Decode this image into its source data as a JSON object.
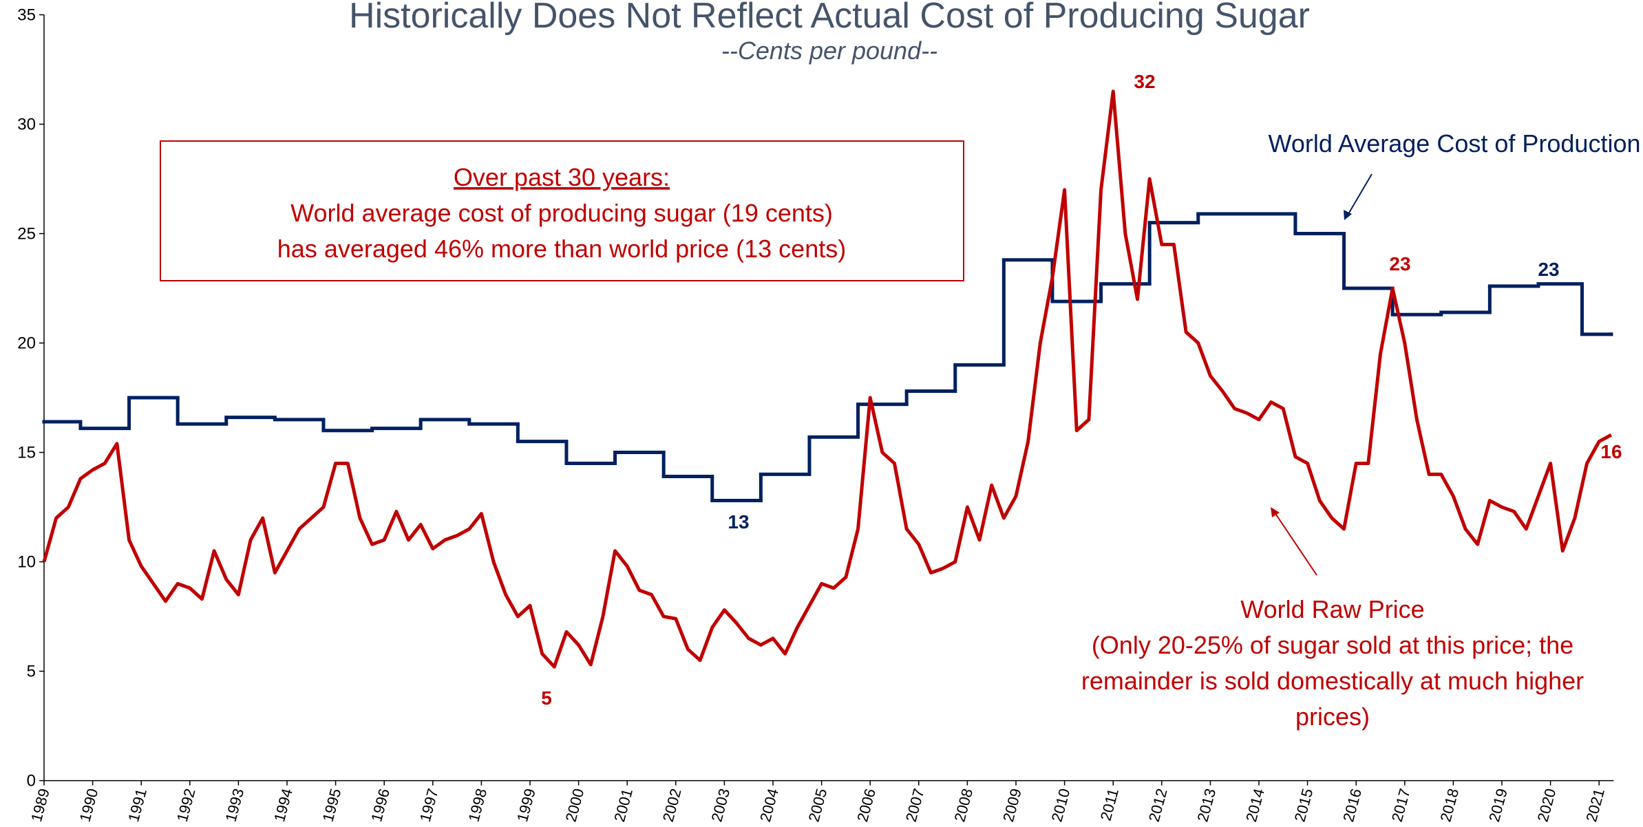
{
  "chart_data": {
    "type": "line",
    "title": "Historically Does Not Reflect Actual Cost of Producing Sugar",
    "subtitle": "--Cents per pound--",
    "xlim": [
      1989,
      2021.3
    ],
    "xticks": [
      1989,
      1990,
      1991,
      1992,
      1993,
      1994,
      1995,
      1996,
      1997,
      1998,
      1999,
      2000,
      2001,
      2002,
      2003,
      2004,
      2005,
      2006,
      2007,
      2008,
      2009,
      2010,
      2011,
      2012,
      2013,
      2014,
      2015,
      2016,
      2017,
      2018,
      2019,
      2020,
      2021
    ],
    "ylim": [
      0,
      35
    ],
    "yticks": [
      0,
      5,
      10,
      15,
      20,
      25,
      30,
      35
    ],
    "grid": false,
    "series": [
      {
        "name": "World Average Cost of Production",
        "color": "#002060",
        "step": true,
        "x": [
          1989,
          1989.75,
          1990.75,
          1991.75,
          1992.75,
          1993.75,
          1994.75,
          1995.75,
          1996.75,
          1997.75,
          1998.75,
          1999.75,
          2000.75,
          2001.75,
          2002.75,
          2003.75,
          2004.75,
          2005.75,
          2006.75,
          2007.75,
          2008.75,
          2009.75,
          2010.75,
          2011.75,
          2012.75,
          2014.75,
          2015.75,
          2016.75,
          2017.75,
          2018.75,
          2019.75,
          2020.65,
          2021.25
        ],
        "values": [
          16.4,
          16.1,
          17.5,
          16.3,
          16.6,
          16.5,
          16.0,
          16.1,
          16.5,
          16.3,
          15.5,
          14.5,
          15.0,
          13.9,
          12.8,
          14.0,
          15.7,
          17.2,
          17.8,
          19.0,
          23.8,
          21.9,
          22.7,
          25.5,
          25.9,
          25.0,
          22.5,
          21.3,
          21.4,
          22.6,
          22.7,
          20.4,
          20.4
        ]
      },
      {
        "name": "World Raw Price",
        "color": "#c00000",
        "x": [
          1989,
          1989.25,
          1989.5,
          1989.75,
          1990,
          1990.25,
          1990.5,
          1990.75,
          1991,
          1991.25,
          1991.5,
          1991.75,
          1992,
          1992.25,
          1992.5,
          1992.75,
          1993,
          1993.25,
          1993.5,
          1993.75,
          1994,
          1994.25,
          1994.5,
          1994.75,
          1995,
          1995.25,
          1995.5,
          1995.75,
          1996,
          1996.25,
          1996.5,
          1996.75,
          1997,
          1997.25,
          1997.5,
          1997.75,
          1998,
          1998.25,
          1998.5,
          1998.75,
          1999,
          1999.25,
          1999.5,
          1999.75,
          2000,
          2000.25,
          2000.5,
          2000.75,
          2001,
          2001.25,
          2001.5,
          2001.75,
          2002,
          2002.25,
          2002.5,
          2002.75,
          2003,
          2003.25,
          2003.5,
          2003.75,
          2004,
          2004.25,
          2004.5,
          2004.75,
          2005,
          2005.25,
          2005.5,
          2005.75,
          2006,
          2006.25,
          2006.5,
          2006.75,
          2007,
          2007.25,
          2007.5,
          2007.75,
          2008,
          2008.25,
          2008.5,
          2008.75,
          2009,
          2009.25,
          2009.5,
          2009.75,
          2010,
          2010.25,
          2010.5,
          2010.75,
          2011,
          2011.25,
          2011.5,
          2011.75,
          2012,
          2012.25,
          2012.5,
          2012.75,
          2013,
          2013.25,
          2013.5,
          2013.75,
          2014,
          2014.25,
          2014.5,
          2014.75,
          2015,
          2015.25,
          2015.5,
          2015.75,
          2016,
          2016.25,
          2016.5,
          2016.75,
          2017,
          2017.25,
          2017.5,
          2017.75,
          2018,
          2018.25,
          2018.5,
          2018.75,
          2019,
          2019.25,
          2019.5,
          2019.75,
          2020,
          2020.25,
          2020.5,
          2020.75,
          2021,
          2021.25
        ],
        "values": [
          10,
          12,
          12.5,
          13.8,
          14.2,
          14.5,
          15.4,
          11,
          9.8,
          9,
          8.2,
          9,
          8.8,
          8.3,
          10.5,
          9.2,
          8.5,
          11,
          12,
          9.5,
          10.5,
          11.5,
          12,
          12.5,
          14.5,
          14.5,
          12,
          10.8,
          11,
          12.3,
          11,
          11.7,
          10.6,
          11,
          11.2,
          11.5,
          12.2,
          10,
          8.5,
          7.5,
          8,
          5.8,
          5.2,
          6.8,
          6.2,
          5.3,
          7.5,
          10.5,
          9.8,
          8.7,
          8.5,
          7.5,
          7.4,
          6,
          5.5,
          7,
          7.8,
          7.2,
          6.5,
          6.2,
          6.5,
          5.8,
          7,
          8,
          9,
          8.8,
          9.3,
          11.5,
          17.5,
          15,
          14.5,
          11.5,
          10.8,
          9.5,
          9.7,
          10,
          12.5,
          11,
          13.5,
          12,
          13,
          15.5,
          20,
          23,
          27,
          16,
          16.5,
          27,
          31.5,
          25,
          22,
          27.5,
          24.5,
          24.5,
          20.5,
          20,
          18.5,
          17.8,
          17,
          16.8,
          16.5,
          17.3,
          17,
          14.8,
          14.5,
          12.8,
          12,
          11.5,
          14.5,
          14.5,
          19.5,
          22.5,
          20,
          16.5,
          14,
          14,
          13,
          11.5,
          10.8,
          12.8,
          12.5,
          12.3,
          11.5,
          13,
          14.5,
          10.5,
          12,
          14.5,
          15.5,
          15.8
        ]
      }
    ],
    "annotations": [
      "32",
      "23",
      "5",
      "16",
      "13",
      "23"
    ],
    "box_lines": [
      "Over past 30 years:",
      "World average cost of producing sugar (19 cents)",
      "has averaged 46% more than world price (13 cents)"
    ],
    "raw_price_note": [
      "(Only 20-25% of sugar sold at this price; the",
      "remainder is sold domestically at much higher",
      "prices)"
    ]
  }
}
